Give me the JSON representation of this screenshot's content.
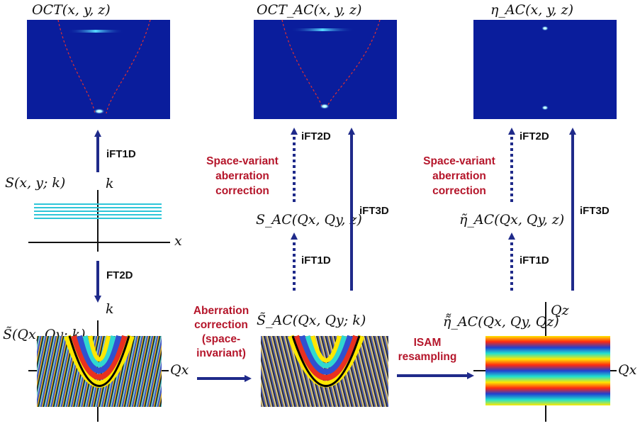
{
  "panels": {
    "oct_title": "OCT(x, y, z)",
    "oct_ac_title": "OCT_AC(x, y, z)",
    "eta_ac_title": "η_AC(x, y, z)"
  },
  "left": {
    "ift1d": "iFT1D",
    "s_label": "S(x, y; k)",
    "k_top": "k",
    "x_axis": "x",
    "ft2d": "FT2D",
    "k_bottom": "k",
    "s_tilde": "S̃(Qx, Qy; k)",
    "qx": "Qx"
  },
  "middle": {
    "ift2d": "iFT2D",
    "space_variant": [
      "Space-variant",
      "aberration",
      "correction"
    ],
    "s_ac": "S_AC(Qx, Qy, z)",
    "ift3d": "iFT3D",
    "ift1d": "iFT1D",
    "aberration_invariant": [
      "Aberration",
      "correction",
      "(space-",
      "invariant)"
    ],
    "s_tilde_ac": "S̃_AC(Qx, Qy; k)",
    "isam": [
      "ISAM",
      "resampling"
    ]
  },
  "right": {
    "ift2d": "iFT2D",
    "space_variant": [
      "Space-variant",
      "aberration",
      "correction"
    ],
    "eta_tilde_ac": "η̃_AC(Qx, Qy, z)",
    "ift3d": "iFT3D",
    "ift1d": "iFT1D",
    "eta_dtilde": "η̃̃_AC(Qx, Qy, Qz)",
    "qz": "Qz",
    "qx": "Qx"
  },
  "colors": {
    "arrow": "#1f2a8a",
    "red_text": "#b5162b",
    "panel_bg": "#0a1d9c",
    "guide": "#e03030"
  }
}
